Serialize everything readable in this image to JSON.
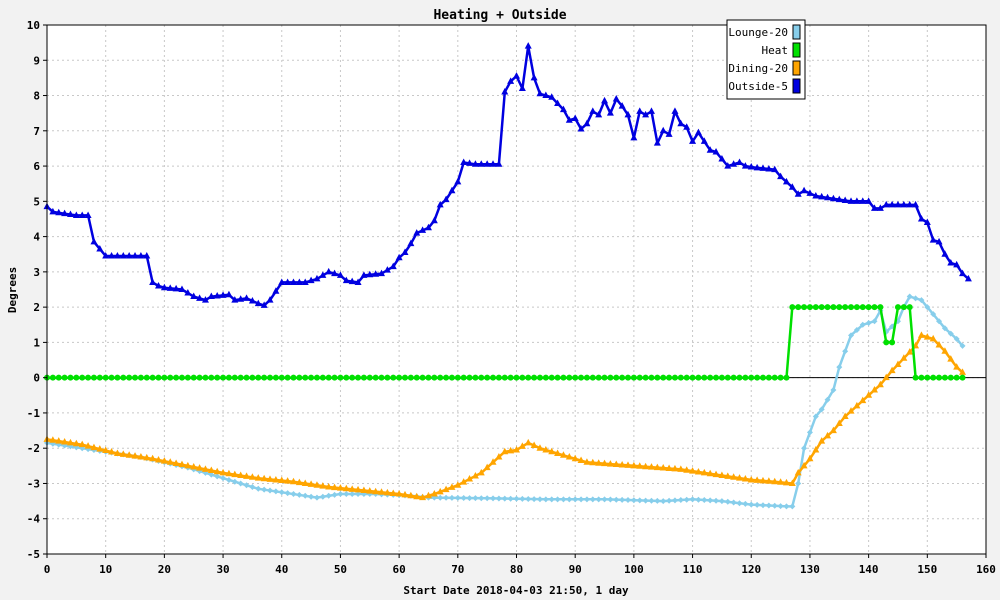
{
  "chart_data": {
    "type": "line",
    "title": "Heating + Outside",
    "xlabel": "Start Date 2018-04-03 21:50, 1 day",
    "ylabel": "Degrees",
    "xlim": [
      0,
      160
    ],
    "ylim": [
      -5,
      10
    ],
    "x_ticks": [
      "0",
      "10",
      "20",
      "30",
      "40",
      "50",
      "60",
      "70",
      "80",
      "90",
      "100",
      "110",
      "120",
      "130",
      "140",
      "150",
      "160"
    ],
    "y_ticks": [
      "-5",
      "-4",
      "-3",
      "-2",
      "-1",
      "0",
      "1",
      "2",
      "3",
      "4",
      "5",
      "6",
      "7",
      "8",
      "9",
      "10"
    ],
    "grid": true,
    "legend_position": "top-right",
    "series": [
      {
        "name": "Lounge-20",
        "color": "#87ceeb",
        "marker": "diamond",
        "points": [
          [
            0,
            -1.85
          ],
          [
            8,
            -2.05
          ],
          [
            16,
            -2.25
          ],
          [
            24,
            -2.55
          ],
          [
            32,
            -2.95
          ],
          [
            36,
            -3.15
          ],
          [
            40,
            -3.25
          ],
          [
            46,
            -3.4
          ],
          [
            50,
            -3.3
          ],
          [
            56,
            -3.3
          ],
          [
            62,
            -3.35
          ],
          [
            65,
            -3.4
          ],
          [
            75,
            -3.42
          ],
          [
            85,
            -3.45
          ],
          [
            95,
            -3.45
          ],
          [
            105,
            -3.5
          ],
          [
            110,
            -3.45
          ],
          [
            115,
            -3.5
          ],
          [
            120,
            -3.6
          ],
          [
            126,
            -3.65
          ],
          [
            127,
            -3.65
          ],
          [
            128,
            -3.0
          ],
          [
            129,
            -2.0
          ],
          [
            131,
            -1.1
          ],
          [
            132,
            -0.9
          ],
          [
            134,
            -0.35
          ],
          [
            135,
            0.3
          ],
          [
            137,
            1.2
          ],
          [
            139,
            1.5
          ],
          [
            141,
            1.6
          ],
          [
            142,
            1.9
          ],
          [
            143,
            1.3
          ],
          [
            145,
            1.6
          ],
          [
            146,
            2.0
          ],
          [
            147,
            2.3
          ],
          [
            149,
            2.2
          ],
          [
            151,
            1.8
          ],
          [
            153,
            1.4
          ],
          [
            155,
            1.1
          ],
          [
            156,
            0.9
          ]
        ]
      },
      {
        "name": "Heat",
        "color": "#00e000",
        "marker": "circle",
        "points": [
          [
            0,
            0
          ],
          [
            126,
            0
          ],
          [
            127,
            2
          ],
          [
            142,
            2
          ],
          [
            143,
            1
          ],
          [
            144,
            1
          ],
          [
            145,
            2
          ],
          [
            147,
            2
          ],
          [
            148,
            0
          ],
          [
            156,
            0
          ]
        ]
      },
      {
        "name": "Dining-20",
        "color": "#ffa500",
        "marker": "triangle",
        "points": [
          [
            0,
            -1.75
          ],
          [
            6,
            -1.9
          ],
          [
            12,
            -2.15
          ],
          [
            18,
            -2.3
          ],
          [
            24,
            -2.5
          ],
          [
            30,
            -2.7
          ],
          [
            36,
            -2.85
          ],
          [
            42,
            -2.95
          ],
          [
            48,
            -3.1
          ],
          [
            54,
            -3.2
          ],
          [
            60,
            -3.3
          ],
          [
            64,
            -3.4
          ],
          [
            66,
            -3.3
          ],
          [
            70,
            -3.05
          ],
          [
            74,
            -2.7
          ],
          [
            76,
            -2.4
          ],
          [
            78,
            -2.1
          ],
          [
            80,
            -2.05
          ],
          [
            82,
            -1.85
          ],
          [
            84,
            -2.0
          ],
          [
            88,
            -2.2
          ],
          [
            92,
            -2.4
          ],
          [
            96,
            -2.45
          ],
          [
            100,
            -2.5
          ],
          [
            104,
            -2.55
          ],
          [
            108,
            -2.6
          ],
          [
            112,
            -2.7
          ],
          [
            116,
            -2.8
          ],
          [
            120,
            -2.9
          ],
          [
            124,
            -2.95
          ],
          [
            127,
            -3.0
          ],
          [
            128,
            -2.7
          ],
          [
            130,
            -2.3
          ],
          [
            132,
            -1.8
          ],
          [
            134,
            -1.5
          ],
          [
            136,
            -1.1
          ],
          [
            138,
            -0.8
          ],
          [
            140,
            -0.5
          ],
          [
            142,
            -0.2
          ],
          [
            144,
            0.2
          ],
          [
            146,
            0.55
          ],
          [
            148,
            0.9
          ],
          [
            149,
            1.2
          ],
          [
            151,
            1.1
          ],
          [
            153,
            0.75
          ],
          [
            155,
            0.3
          ],
          [
            156,
            0.15
          ]
        ]
      },
      {
        "name": "Outside-5",
        "color": "#0000e0",
        "marker": "triangle",
        "points": [
          [
            0,
            4.85
          ],
          [
            1,
            4.7
          ],
          [
            3,
            4.65
          ],
          [
            5,
            4.6
          ],
          [
            7,
            4.6
          ],
          [
            8,
            3.85
          ],
          [
            9,
            3.65
          ],
          [
            10,
            3.45
          ],
          [
            17,
            3.45
          ],
          [
            18,
            2.7
          ],
          [
            19,
            2.6
          ],
          [
            20,
            2.55
          ],
          [
            23,
            2.5
          ],
          [
            25,
            2.3
          ],
          [
            27,
            2.2
          ],
          [
            28,
            2.3
          ],
          [
            31,
            2.35
          ],
          [
            32,
            2.2
          ],
          [
            34,
            2.25
          ],
          [
            36,
            2.1
          ],
          [
            37,
            2.05
          ],
          [
            38,
            2.2
          ],
          [
            39,
            2.45
          ],
          [
            40,
            2.7
          ],
          [
            44,
            2.7
          ],
          [
            46,
            2.8
          ],
          [
            48,
            3.0
          ],
          [
            50,
            2.9
          ],
          [
            51,
            2.75
          ],
          [
            53,
            2.7
          ],
          [
            54,
            2.9
          ],
          [
            57,
            2.95
          ],
          [
            59,
            3.15
          ],
          [
            60,
            3.4
          ],
          [
            61,
            3.55
          ],
          [
            62,
            3.8
          ],
          [
            63,
            4.1
          ],
          [
            65,
            4.25
          ],
          [
            66,
            4.45
          ],
          [
            67,
            4.9
          ],
          [
            68,
            5.05
          ],
          [
            69,
            5.3
          ],
          [
            70,
            5.55
          ],
          [
            71,
            6.1
          ],
          [
            73,
            6.05
          ],
          [
            77,
            6.05
          ],
          [
            78,
            8.1
          ],
          [
            79,
            8.4
          ],
          [
            80,
            8.55
          ],
          [
            81,
            8.2
          ],
          [
            82,
            9.4
          ],
          [
            83,
            8.5
          ],
          [
            84,
            8.05
          ],
          [
            86,
            7.95
          ],
          [
            88,
            7.6
          ],
          [
            89,
            7.3
          ],
          [
            90,
            7.35
          ],
          [
            91,
            7.05
          ],
          [
            92,
            7.2
          ],
          [
            93,
            7.55
          ],
          [
            94,
            7.45
          ],
          [
            95,
            7.85
          ],
          [
            96,
            7.5
          ],
          [
            97,
            7.9
          ],
          [
            98,
            7.7
          ],
          [
            99,
            7.45
          ],
          [
            100,
            6.8
          ],
          [
            101,
            7.55
          ],
          [
            102,
            7.45
          ],
          [
            103,
            7.55
          ],
          [
            104,
            6.65
          ],
          [
            105,
            7.0
          ],
          [
            106,
            6.9
          ],
          [
            107,
            7.55
          ],
          [
            108,
            7.2
          ],
          [
            109,
            7.1
          ],
          [
            110,
            6.7
          ],
          [
            111,
            6.95
          ],
          [
            112,
            6.7
          ],
          [
            113,
            6.45
          ],
          [
            114,
            6.4
          ],
          [
            116,
            6.0
          ],
          [
            118,
            6.1
          ],
          [
            119,
            6.0
          ],
          [
            121,
            5.95
          ],
          [
            124,
            5.9
          ],
          [
            125,
            5.7
          ],
          [
            126,
            5.55
          ],
          [
            127,
            5.4
          ],
          [
            128,
            5.2
          ],
          [
            129,
            5.3
          ],
          [
            131,
            5.15
          ],
          [
            133,
            5.1
          ],
          [
            135,
            5.05
          ],
          [
            137,
            5.0
          ],
          [
            140,
            5.0
          ],
          [
            141,
            4.8
          ],
          [
            142,
            4.8
          ],
          [
            143,
            4.9
          ],
          [
            148,
            4.9
          ],
          [
            149,
            4.5
          ],
          [
            150,
            4.4
          ],
          [
            151,
            3.9
          ],
          [
            152,
            3.85
          ],
          [
            153,
            3.5
          ],
          [
            154,
            3.25
          ],
          [
            155,
            3.2
          ],
          [
            156,
            2.95
          ],
          [
            157,
            2.8
          ]
        ]
      }
    ]
  }
}
